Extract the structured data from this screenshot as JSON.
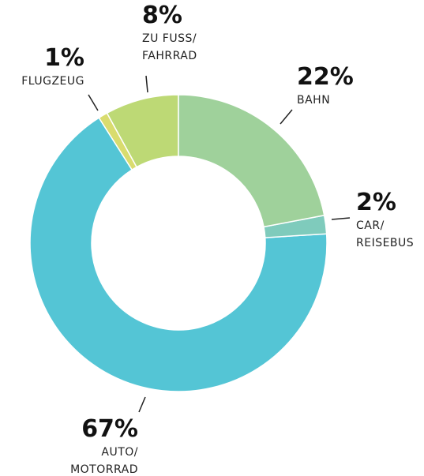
{
  "chart_data": {
    "type": "donut",
    "categories": [
      "BAHN",
      "CAR/\nREISEBUS",
      "AUTO/\nMOTORRAD",
      "FLUGZEUG",
      "ZU FUSS/\nFAHRRAD"
    ],
    "values": [
      22,
      2,
      67,
      1,
      8
    ],
    "value_labels": [
      "22%",
      "2%",
      "67%",
      "1%",
      "8%"
    ],
    "colors": [
      "#9fd19b",
      "#7fcbbc",
      "#54c5d5",
      "#d9dc6e",
      "#bdd975"
    ]
  }
}
